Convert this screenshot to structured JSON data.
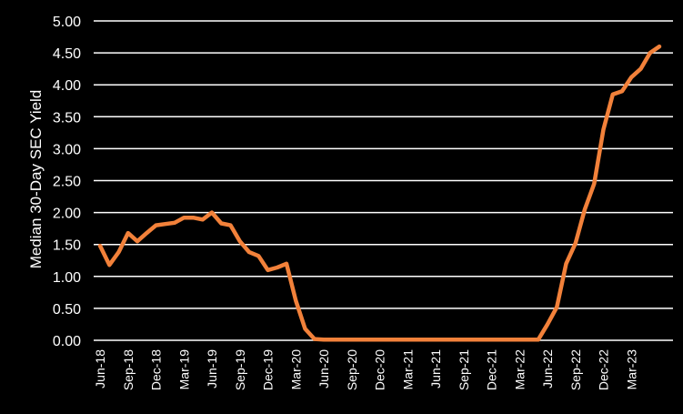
{
  "chart_data": {
    "type": "line",
    "title": "",
    "xlabel": "",
    "ylabel": "Median 30-Day SEC Yield",
    "ylim": [
      0,
      5
    ],
    "y_ticks": [
      "0.00",
      "0.50",
      "1.00",
      "1.50",
      "2.00",
      "2.50",
      "3.00",
      "3.50",
      "4.00",
      "4.50",
      "5.00"
    ],
    "x_ticks": [
      "Jun-18",
      "Sep-18",
      "Dec-18",
      "Mar-19",
      "Jun-19",
      "Sep-19",
      "Dec-19",
      "Mar-20",
      "Jun-20",
      "Sep-20",
      "Dec-20",
      "Mar-21",
      "Jun-21",
      "Sep-21",
      "Dec-21",
      "Mar-22",
      "Jun-22",
      "Sep-22",
      "Dec-22",
      "Mar-23"
    ],
    "x_start": "Jun-18",
    "grid": "horizontal",
    "legend": "none",
    "colors": {
      "background": "#000000",
      "line": "#F2813A",
      "grid": "#ffffff",
      "text": "#ffffff"
    },
    "series": [
      {
        "values": [
          1.48,
          1.18,
          1.38,
          1.68,
          1.55,
          1.68,
          1.8,
          1.82,
          1.84,
          1.92,
          1.92,
          1.89,
          2.0,
          1.83,
          1.8,
          1.55,
          1.38,
          1.32,
          1.1,
          1.14,
          1.2,
          0.62,
          0.18,
          0.02,
          0.01,
          0.01,
          0.01,
          0.01,
          0.01,
          0.01,
          0.01,
          0.01,
          0.01,
          0.01,
          0.01,
          0.01,
          0.01,
          0.01,
          0.01,
          0.01,
          0.01,
          0.01,
          0.01,
          0.01,
          0.01,
          0.01,
          0.01,
          0.01,
          0.25,
          0.52,
          1.2,
          1.52,
          2.05,
          2.45,
          3.3,
          3.85,
          3.9,
          4.12,
          4.25,
          4.5,
          4.6
        ]
      }
    ]
  }
}
